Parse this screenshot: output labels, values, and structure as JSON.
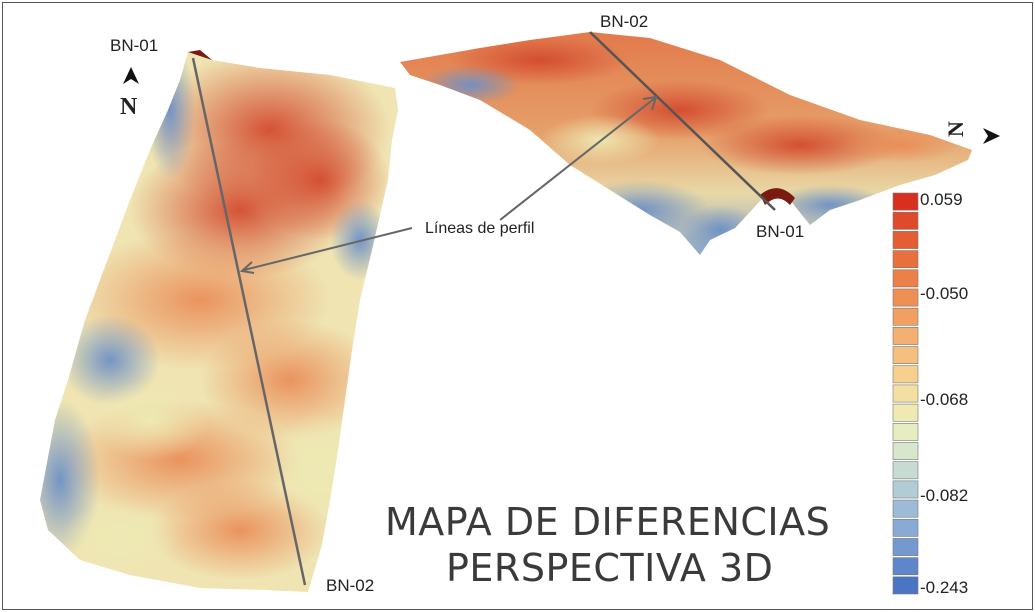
{
  "map": {
    "title_line1": "MAPA DE DIFERENCIAS",
    "title_line2": "PERSPECTIVA 3D",
    "profile_label": "Líneas de perfil",
    "north_letter": "N",
    "north_letter_rotated": "N",
    "points": {
      "left_top": "BN-01",
      "left_bottom": "BN-02",
      "right_top": "BN-02",
      "right_bottom": "BN-01"
    }
  },
  "legend": {
    "colors": [
      "#d7301f",
      "#de4a2a",
      "#e35e33",
      "#e8703c",
      "#eb8048",
      "#ee9054",
      "#f1a062",
      "#f3b070",
      "#f5c07f",
      "#f6d08f",
      "#f3e0a0",
      "#eeeab2",
      "#e6edc1",
      "#d8e6cc",
      "#c6dcd3",
      "#b2ccd6",
      "#9dbbd6",
      "#88aad5",
      "#7399d1",
      "#5e87cb",
      "#4a75c2"
    ],
    "ticks": [
      "0.059",
      "-0.050",
      "-0.068",
      "-0.082",
      "-0.243"
    ],
    "colors_meaning": "red = high, blue = low"
  }
}
